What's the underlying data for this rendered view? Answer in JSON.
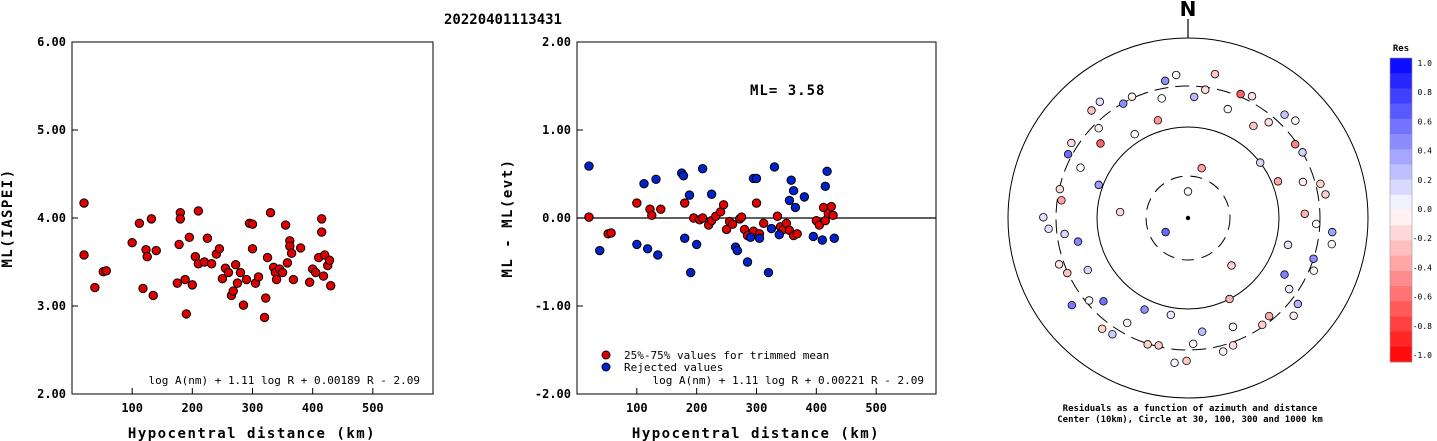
{
  "page_title": "20220401113431",
  "chart_data": [
    {
      "type": "scatter",
      "title": "",
      "xlabel": "Hypocentral distance (km)",
      "ylabel": "ML(IASPEI)",
      "xlim": [
        0,
        600
      ],
      "ylim": [
        2.0,
        6.0
      ],
      "x_ticks": [
        "100",
        "200",
        "300",
        "400",
        "500"
      ],
      "y_ticks": [
        "2.00",
        "3.00",
        "4.00",
        "5.00",
        "6.00"
      ],
      "formula": "log A(nm) + 1.11 log R + 0.00189 R - 2.09",
      "marker_color": "#e00000",
      "points": [
        [
          20,
          4.17
        ],
        [
          20,
          3.58
        ],
        [
          38,
          3.21
        ],
        [
          52,
          3.39
        ],
        [
          57,
          3.4
        ],
        [
          100,
          3.72
        ],
        [
          112,
          3.94
        ],
        [
          118,
          3.2
        ],
        [
          123,
          3.64
        ],
        [
          125,
          3.56
        ],
        [
          132,
          3.99
        ],
        [
          135,
          3.12
        ],
        [
          140,
          3.63
        ],
        [
          175,
          3.26
        ],
        [
          178,
          3.7
        ],
        [
          180,
          4.06
        ],
        [
          180,
          3.99
        ],
        [
          188,
          3.3
        ],
        [
          190,
          2.91
        ],
        [
          195,
          3.78
        ],
        [
          200,
          3.24
        ],
        [
          205,
          3.56
        ],
        [
          210,
          4.08
        ],
        [
          210,
          3.48
        ],
        [
          220,
          3.5
        ],
        [
          225,
          3.77
        ],
        [
          232,
          3.48
        ],
        [
          240,
          3.59
        ],
        [
          245,
          3.65
        ],
        [
          250,
          3.31
        ],
        [
          255,
          3.43
        ],
        [
          260,
          3.38
        ],
        [
          265,
          3.12
        ],
        [
          268,
          3.17
        ],
        [
          272,
          3.47
        ],
        [
          275,
          3.26
        ],
        [
          280,
          3.38
        ],
        [
          285,
          3.01
        ],
        [
          290,
          3.3
        ],
        [
          295,
          3.94
        ],
        [
          300,
          3.93
        ],
        [
          300,
          3.65
        ],
        [
          305,
          3.26
        ],
        [
          310,
          3.33
        ],
        [
          320,
          2.87
        ],
        [
          322,
          3.09
        ],
        [
          325,
          3.55
        ],
        [
          330,
          4.06
        ],
        [
          335,
          3.44
        ],
        [
          338,
          3.38
        ],
        [
          340,
          3.3
        ],
        [
          345,
          3.42
        ],
        [
          350,
          3.38
        ],
        [
          355,
          3.92
        ],
        [
          358,
          3.49
        ],
        [
          362,
          3.74
        ],
        [
          362,
          3.68
        ],
        [
          365,
          3.6
        ],
        [
          368,
          3.3
        ],
        [
          380,
          3.66
        ],
        [
          395,
          3.27
        ],
        [
          400,
          3.42
        ],
        [
          405,
          3.38
        ],
        [
          410,
          3.55
        ],
        [
          415,
          3.99
        ],
        [
          415,
          3.84
        ],
        [
          418,
          3.34
        ],
        [
          420,
          3.58
        ],
        [
          425,
          3.46
        ],
        [
          428,
          3.52
        ],
        [
          430,
          3.23
        ]
      ]
    },
    {
      "type": "scatter",
      "title": "",
      "xlabel": "Hypocentral distance (km)",
      "ylabel": "ML - ML(evt)",
      "xlim": [
        0,
        600
      ],
      "ylim": [
        -2.0,
        2.0
      ],
      "x_ticks": [
        "100",
        "200",
        "300",
        "400",
        "500"
      ],
      "y_ticks": [
        "-2.00",
        "-1.00",
        "0.00",
        "1.00",
        "2.00"
      ],
      "annotation": "ML= 3.58",
      "formula": "log A(nm) + 1.11 log R + 0.00221 R - 2.09",
      "legend_position": "bottom-left",
      "series": [
        {
          "name": "25%-75% values for trimmed mean",
          "color": "#e00000",
          "points": [
            [
              20,
              0.01
            ],
            [
              52,
              -0.18
            ],
            [
              57,
              -0.17
            ],
            [
              100,
              0.17
            ],
            [
              122,
              0.1
            ],
            [
              125,
              0.03
            ],
            [
              140,
              0.1
            ],
            [
              180,
              0.17
            ],
            [
              195,
              0.0
            ],
            [
              205,
              -0.02
            ],
            [
              210,
              0.0
            ],
            [
              220,
              -0.08
            ],
            [
              225,
              -0.03
            ],
            [
              232,
              0.02
            ],
            [
              240,
              0.07
            ],
            [
              245,
              0.15
            ],
            [
              250,
              -0.13
            ],
            [
              255,
              -0.04
            ],
            [
              260,
              -0.07
            ],
            [
              272,
              -0.01
            ],
            [
              275,
              0.01
            ],
            [
              280,
              -0.13
            ],
            [
              285,
              -0.2
            ],
            [
              295,
              -0.15
            ],
            [
              300,
              0.17
            ],
            [
              305,
              -0.18
            ],
            [
              312,
              -0.06
            ],
            [
              335,
              0.02
            ],
            [
              340,
              -0.1
            ],
            [
              345,
              -0.13
            ],
            [
              350,
              -0.06
            ],
            [
              355,
              -0.14
            ],
            [
              362,
              -0.2
            ],
            [
              368,
              -0.18
            ],
            [
              400,
              -0.03
            ],
            [
              405,
              -0.08
            ],
            [
              412,
              0.12
            ],
            [
              415,
              -0.03
            ],
            [
              420,
              0.05
            ],
            [
              425,
              0.13
            ],
            [
              428,
              0.03
            ]
          ]
        },
        {
          "name": "Rejected values",
          "color": "#0022cc",
          "points": [
            [
              20,
              0.59
            ],
            [
              38,
              -0.37
            ],
            [
              100,
              -0.3
            ],
            [
              112,
              0.39
            ],
            [
              118,
              -0.35
            ],
            [
              132,
              0.44
            ],
            [
              135,
              -0.42
            ],
            [
              175,
              0.51
            ],
            [
              178,
              0.48
            ],
            [
              180,
              -0.23
            ],
            [
              188,
              0.26
            ],
            [
              190,
              -0.62
            ],
            [
              200,
              -0.3
            ],
            [
              210,
              0.56
            ],
            [
              225,
              0.27
            ],
            [
              265,
              -0.33
            ],
            [
              268,
              -0.37
            ],
            [
              285,
              -0.5
            ],
            [
              290,
              -0.22
            ],
            [
              295,
              0.45
            ],
            [
              300,
              0.45
            ],
            [
              305,
              -0.23
            ],
            [
              320,
              -0.62
            ],
            [
              325,
              -0.12
            ],
            [
              330,
              0.58
            ],
            [
              338,
              -0.19
            ],
            [
              355,
              0.2
            ],
            [
              358,
              0.43
            ],
            [
              362,
              0.31
            ],
            [
              365,
              0.12
            ],
            [
              380,
              0.24
            ],
            [
              395,
              -0.21
            ],
            [
              410,
              -0.25
            ],
            [
              415,
              0.36
            ],
            [
              418,
              0.53
            ],
            [
              430,
              -0.23
            ]
          ]
        }
      ]
    }
  ],
  "azimuth_plot": {
    "north_label": "N",
    "caption_line1": "Residuals as a function of azimuth and distance",
    "caption_line2": "Center (10km), Circle at 30, 100, 300 and 1000 km",
    "colorbar_title": "Res",
    "colorbar_range": [
      -1.0,
      1.0
    ],
    "colorbar_labels": [
      "1.0",
      "0.8",
      "0.6",
      "0.4",
      "0.2",
      "0.0",
      "-0.2",
      "-0.4",
      "-0.6",
      "-0.8",
      "-1.0"
    ],
    "color_negative": "#ff0000",
    "color_zero": "#ffffff",
    "color_positive": "#0000ff"
  }
}
